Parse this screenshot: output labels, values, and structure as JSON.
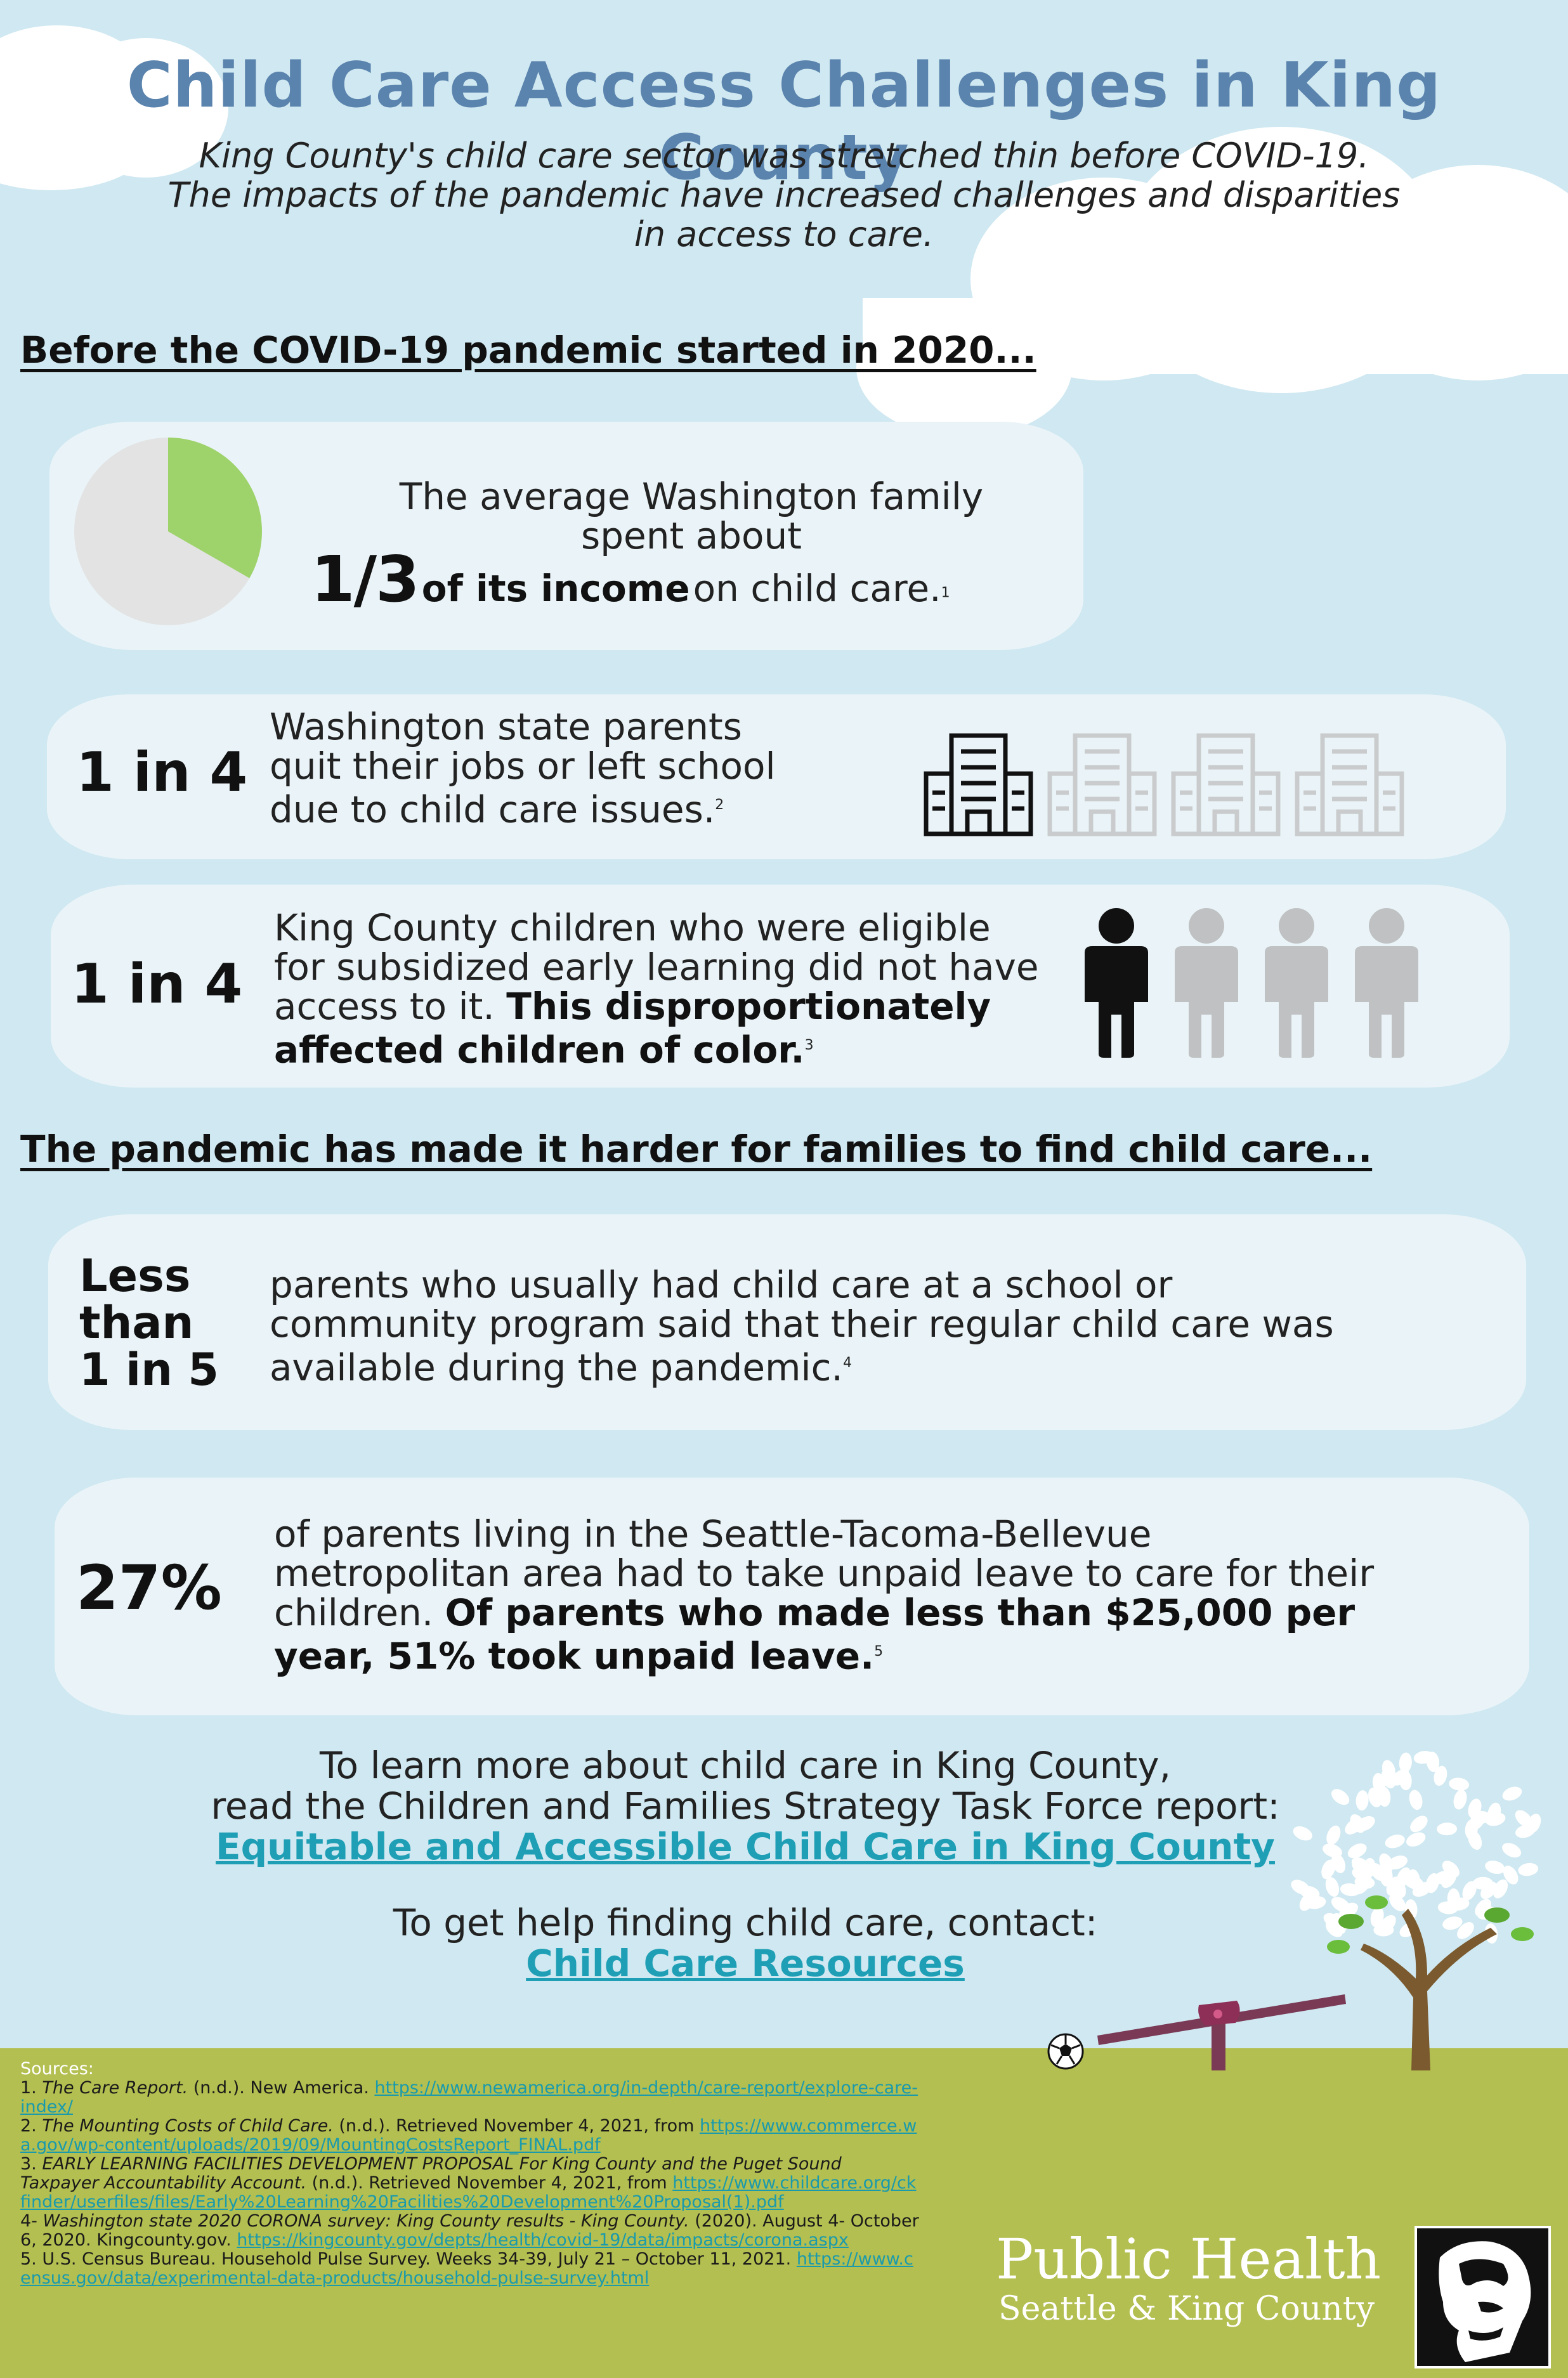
{
  "title": "Child Care Access Challenges in King County",
  "subtitle_lines": [
    "King County's child care sector was stretched thin before COVID-19.",
    "The impacts of the pandemic have increased challenges and disparities",
    "in access to care."
  ],
  "sections": {
    "before": "Before the COVID-19 pandemic started in 2020...",
    "pandemic": "The pandemic has made it harder for families to find child care..."
  },
  "stat1": {
    "line1": "The average Washington family",
    "line2": "spent about",
    "big": "1/3",
    "bold": "of its income",
    "rest": "on child care.",
    "ref": "1",
    "pie_fraction": 0.333
  },
  "stat2": {
    "big": "1 in 4",
    "line1": "Washington state parents",
    "line2": "quit their jobs or left school",
    "line3": "due to child care issues.",
    "ref": "2"
  },
  "stat3": {
    "big": "1 in 4",
    "line1": "King County children who were eligible",
    "line2": "for subsidized early learning did not have",
    "line3_plain": "access to it.",
    "line3_bold": "This disproportionately",
    "line4_bold": "affected children of color.",
    "ref": "3"
  },
  "stat4": {
    "big_lines": [
      "Less",
      "than",
      "1 in 5"
    ],
    "line1": "parents who usually had child care at a school or",
    "line2": "community program said that their regular child care was",
    "line3": "available during the pandemic.",
    "ref": "4"
  },
  "stat5": {
    "big": "27%",
    "line1": "of parents living in the Seattle-Tacoma-Bellevue",
    "line2": "metropolitan area had to take unpaid leave to care for their",
    "line3_plain": "children.",
    "line3_bold": "Of parents who made less than $25,000 per",
    "line4_bold": "year, 51% took unpaid leave.",
    "ref": "5"
  },
  "learn_more": {
    "line1": "To learn more about child care in King County,",
    "line2": "read the Children and Families Strategy Task Force report:",
    "link": "Equitable and Accessible Child Care in King County"
  },
  "help": {
    "line1": "To get help finding child care, contact:",
    "link": "Child Care Resources"
  },
  "sources": {
    "heading": "Sources:",
    "s1_num": "1.",
    "s1_title": "The Care Report.",
    "s1_rest": "(n.d.). New America.",
    "s1_url": "https://www.newamerica.org/in-depth/care-report/explore-care-index/",
    "s2_num": "2.",
    "s2_title": "The Mounting Costs of Child Care.",
    "s2_rest": "(n.d.). Retrieved November 4, 2021, from",
    "s2_url": "https://www.commerce.wa.gov/wp-content/uploads/2019/09/MountingCostsReport_FINAL.pdf",
    "s3_num": "3.",
    "s3_title": "EARLY LEARNING FACILITIES DEVELOPMENT PROPOSAL For King County and the Puget Sound Taxpayer Accountability Account.",
    "s3_rest": "(n.d.). Retrieved November 4, 2021, from",
    "s3_url": "https://www.childcare.org/ckfinder/userfiles/files/Early%20Learning%20Facilities%20Development%20Proposal(1).pdf",
    "s4_num": "4-",
    "s4_title": "Washington state 2020 CORONA survey: King County results - King County.",
    "s4_rest": "(2020). August 4- October 6, 2020.  Kingcounty.gov.",
    "s4_url": "https://kingcounty.gov/depts/health/covid-19/data/impacts/corona.aspx",
    "s5_num": "5.",
    "s5_text": "U.S. Census Bureau. Household Pulse Survey. Weeks 34-39, July 21 – October 11, 2021.",
    "s5_url": "https://www.census.gov/data/experimental-data-products/household-pulse-survey.html"
  },
  "logo": {
    "line1": "Public Health",
    "line2": "Seattle & King County"
  },
  "colors": {
    "title": "#5a83ad",
    "background": "#cfe8f1",
    "panel": "#eaf4f8",
    "pie_highlight": "#9dd36a",
    "pie_rest": "#e3e3e3",
    "link": "#1f9fb5",
    "footer": "#b3bf50",
    "icon_active": "#111111",
    "icon_inactive": "#bfc1c2"
  }
}
